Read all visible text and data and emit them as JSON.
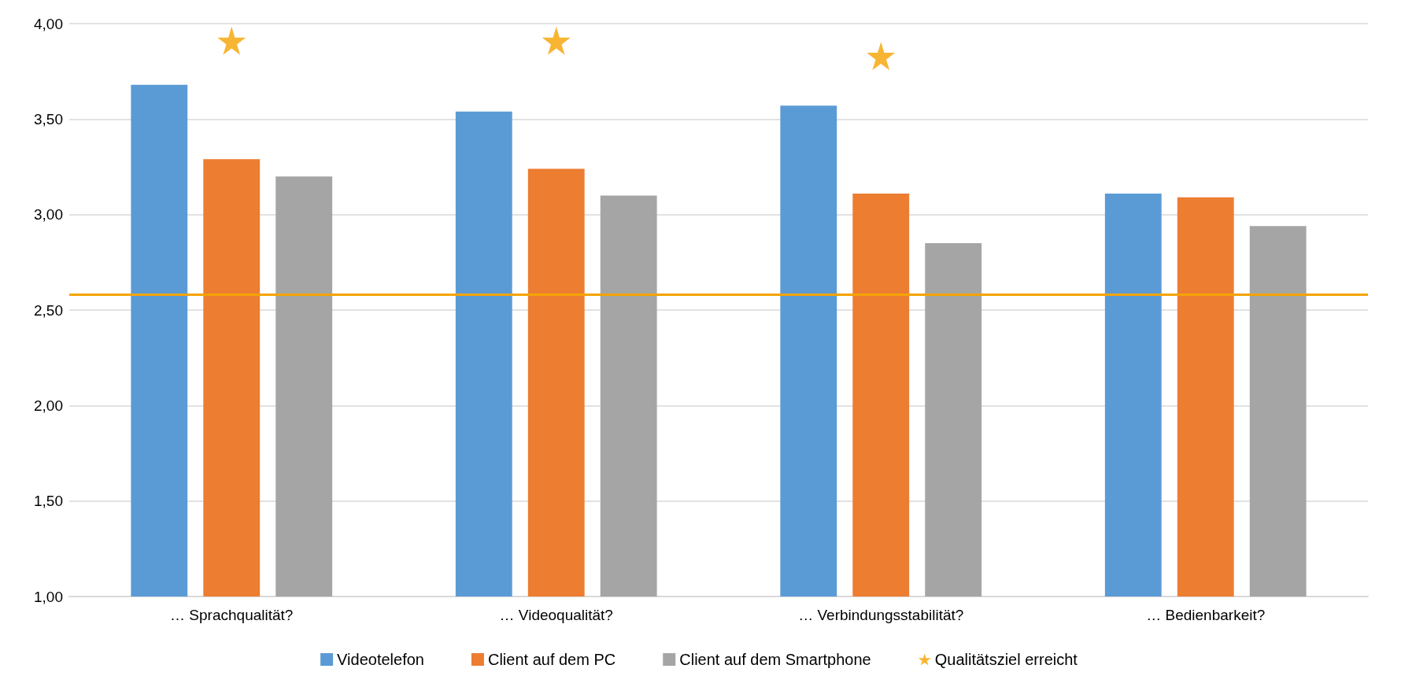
{
  "chart_data": {
    "type": "bar",
    "categories": [
      "… Sprachqualität?",
      "… Videoqualität?",
      "… Verbindungsstabilität?",
      "… Bedienbarkeit?"
    ],
    "series": [
      {
        "name": "Videotelefon",
        "color": "#5b9bd5",
        "values": [
          3.68,
          3.54,
          3.57,
          3.11
        ]
      },
      {
        "name": "Client auf dem PC",
        "color": "#ed7d31",
        "values": [
          3.29,
          3.24,
          3.11,
          3.09
        ]
      },
      {
        "name": "Client auf dem Smartphone",
        "color": "#a5a5a5",
        "values": [
          3.2,
          3.1,
          2.85,
          2.94
        ]
      },
      {
        "name": "Qualitätsziel erreicht",
        "type": "scatter",
        "marker": "star",
        "color": "#f5a300",
        "x": [
          "… Sprachqualität?",
          "… Videoqualität?",
          "… Verbindungsstabilität?"
        ],
        "values": [
          3.91,
          3.91,
          3.83
        ]
      }
    ],
    "ylim": [
      1,
      4
    ],
    "yticks": [
      {
        "value": 1,
        "label": "1,00"
      },
      {
        "value": 1.5,
        "label": "1,50"
      },
      {
        "value": 2,
        "label": "2,00"
      },
      {
        "value": 2.5,
        "label": "2,50"
      },
      {
        "value": 3,
        "label": "3,00"
      },
      {
        "value": 3.5,
        "label": "3,50"
      },
      {
        "value": 4,
        "label": "4,00"
      }
    ],
    "ref_lines": [
      {
        "axis": "y",
        "value": 2.58,
        "label": null,
        "color": "#f5a300"
      }
    ],
    "grid": "y",
    "legend": "bottom"
  }
}
